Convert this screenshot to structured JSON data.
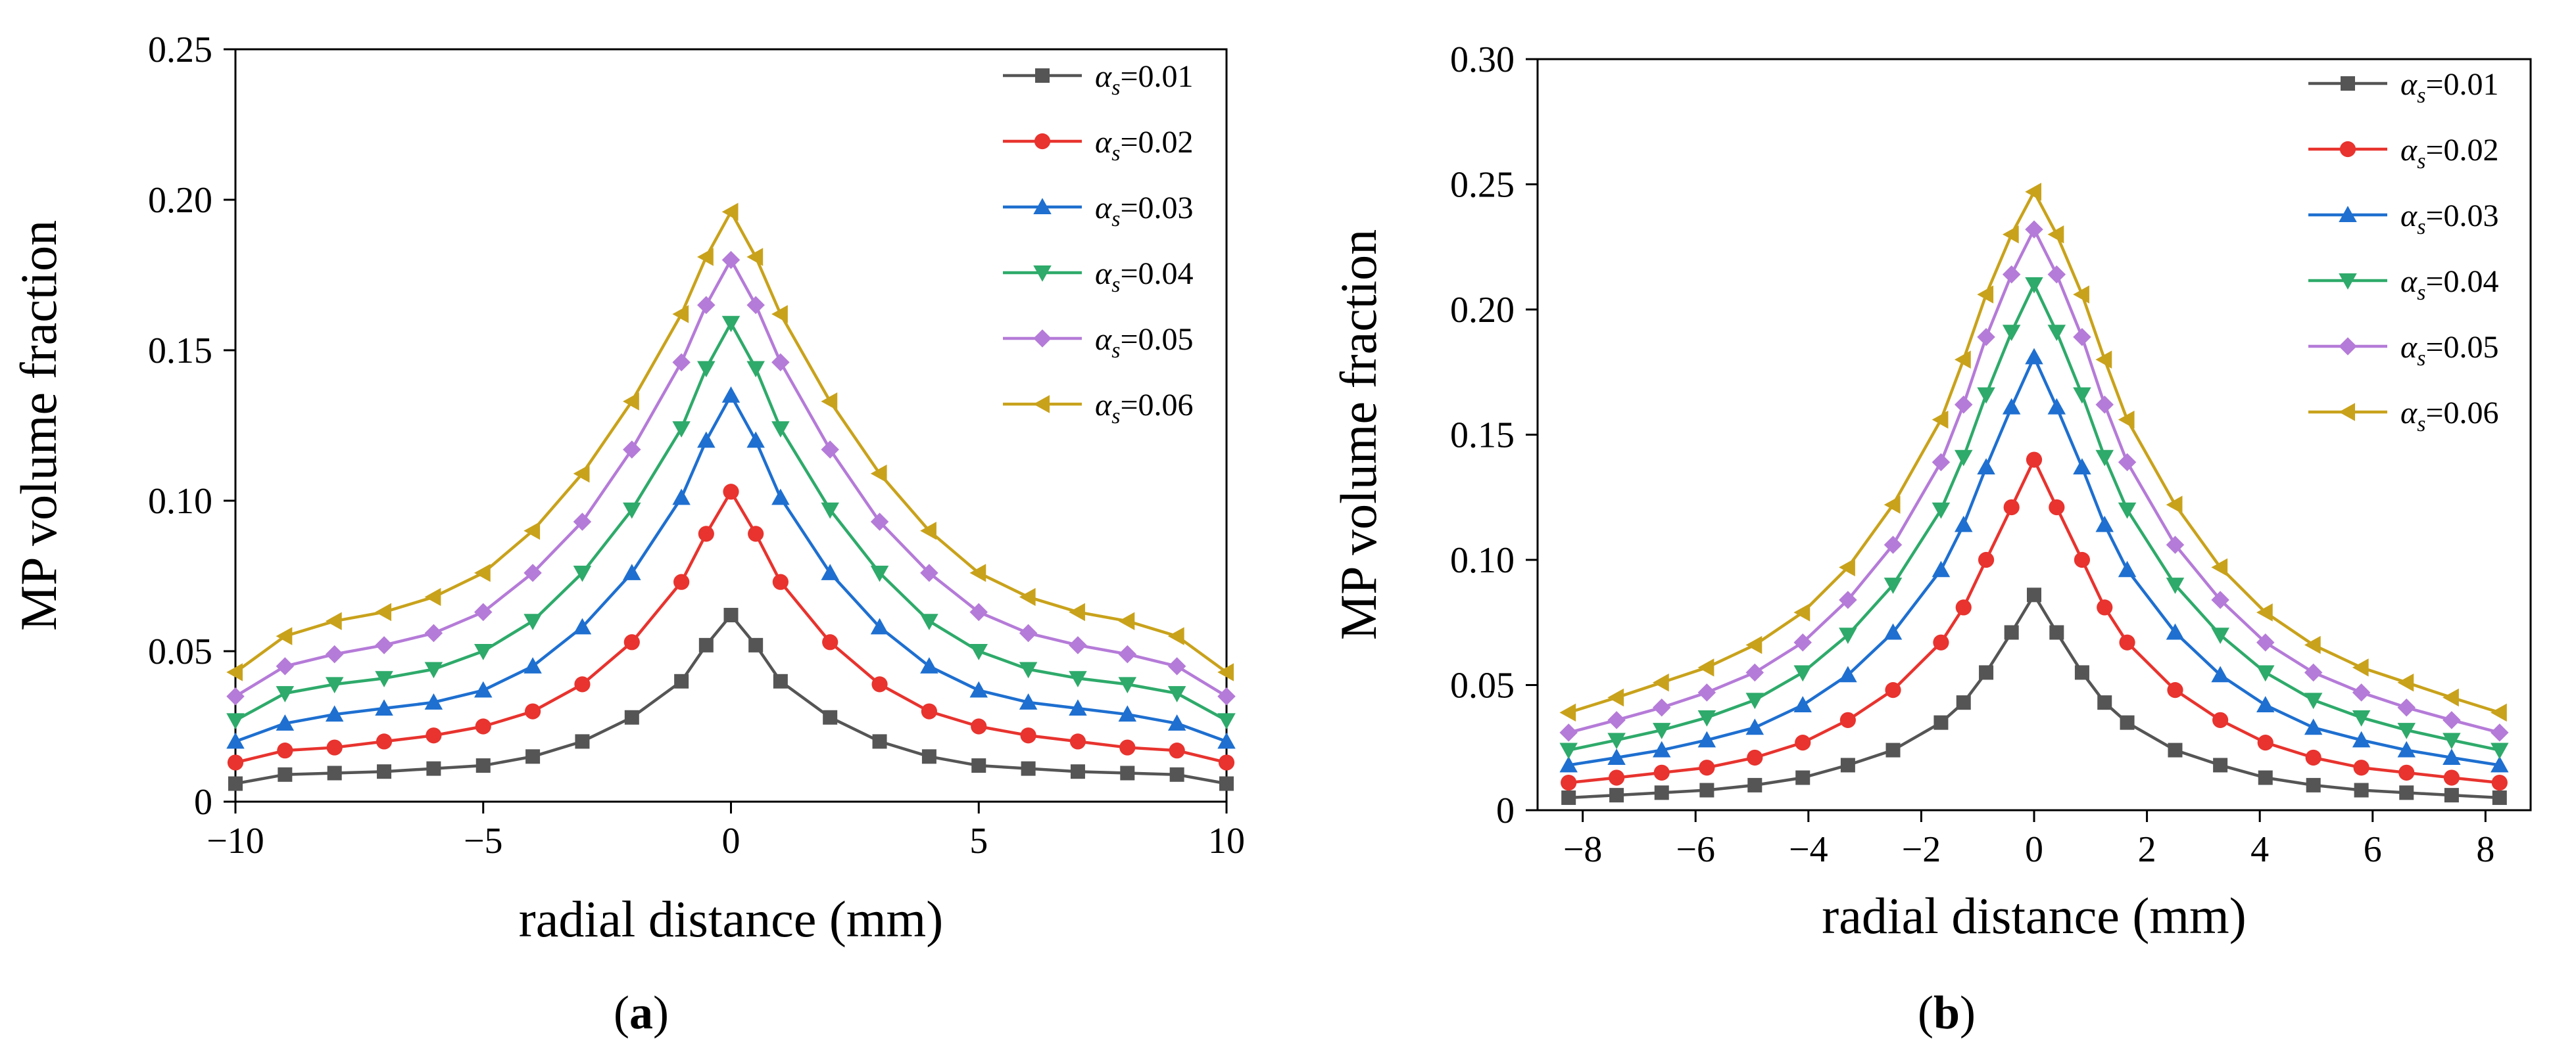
{
  "panel_labels": [
    "(a)",
    "(b)"
  ],
  "panel_letters": [
    "a",
    "b"
  ],
  "legend_symbol": "α",
  "legend_subscript": "s",
  "chart_data": [
    {
      "type": "line",
      "panel": "(a)",
      "xlabel": "radial distance (mm)",
      "ylabel": "MP volume fraction",
      "xlim": [
        -10,
        10
      ],
      "ylim": [
        0,
        0.25
      ],
      "xticks": [
        -10,
        -5,
        0,
        5,
        10
      ],
      "xtick_labels": [
        "−10",
        "−5",
        "0",
        "5",
        "10"
      ],
      "yticks": [
        0,
        0.05,
        0.1,
        0.15,
        0.2,
        0.25
      ],
      "ytick_labels": [
        "0",
        "0.05",
        "0.10",
        "0.15",
        "0.20",
        "0.25"
      ],
      "legend_position": "top-right",
      "x": [
        -10,
        -9,
        -8,
        -7,
        -6,
        -5,
        -4,
        -3,
        -2,
        -1,
        -0.5,
        0,
        0.5,
        1,
        2,
        3,
        4,
        5,
        6,
        7,
        8,
        9,
        10
      ],
      "series": [
        {
          "name": "αs=0.01",
          "value_label": "=0.01",
          "color": "#555555",
          "marker": "square",
          "values": [
            0.006,
            0.009,
            0.0095,
            0.01,
            0.011,
            0.012,
            0.015,
            0.02,
            0.028,
            0.04,
            0.052,
            0.062,
            0.052,
            0.04,
            0.028,
            0.02,
            0.015,
            0.012,
            0.011,
            0.01,
            0.0095,
            0.009,
            0.006
          ]
        },
        {
          "name": "αs=0.02",
          "value_label": "=0.02",
          "color": "#e8332e",
          "marker": "circle",
          "values": [
            0.013,
            0.017,
            0.018,
            0.02,
            0.022,
            0.025,
            0.03,
            0.039,
            0.053,
            0.073,
            0.089,
            0.103,
            0.089,
            0.073,
            0.053,
            0.039,
            0.03,
            0.025,
            0.022,
            0.02,
            0.018,
            0.017,
            0.013
          ]
        },
        {
          "name": "αs=0.03",
          "value_label": "=0.03",
          "color": "#1e6fd0",
          "marker": "triangle-up",
          "values": [
            0.02,
            0.026,
            0.029,
            0.031,
            0.033,
            0.037,
            0.045,
            0.058,
            0.076,
            0.101,
            0.12,
            0.135,
            0.12,
            0.101,
            0.076,
            0.058,
            0.045,
            0.037,
            0.033,
            0.031,
            0.029,
            0.026,
            0.02
          ]
        },
        {
          "name": "αs=0.04",
          "value_label": "=0.04",
          "color": "#2eaa6a",
          "marker": "triangle-down",
          "values": [
            0.027,
            0.036,
            0.039,
            0.041,
            0.044,
            0.05,
            0.06,
            0.076,
            0.097,
            0.124,
            0.144,
            0.159,
            0.144,
            0.124,
            0.097,
            0.076,
            0.06,
            0.05,
            0.044,
            0.041,
            0.039,
            0.036,
            0.027
          ]
        },
        {
          "name": "αs=0.05",
          "value_label": "=0.05",
          "color": "#b57bd8",
          "marker": "diamond",
          "values": [
            0.035,
            0.045,
            0.049,
            0.052,
            0.056,
            0.063,
            0.076,
            0.093,
            0.117,
            0.146,
            0.165,
            0.18,
            0.165,
            0.146,
            0.117,
            0.093,
            0.076,
            0.063,
            0.056,
            0.052,
            0.049,
            0.045,
            0.035
          ]
        },
        {
          "name": "αs=0.06",
          "value_label": "=0.06",
          "color": "#c9a21b",
          "marker": "triangle-left",
          "values": [
            0.043,
            0.055,
            0.06,
            0.063,
            0.068,
            0.076,
            0.09,
            0.109,
            0.133,
            0.162,
            0.181,
            0.196,
            0.181,
            0.162,
            0.133,
            0.109,
            0.09,
            0.076,
            0.068,
            0.063,
            0.06,
            0.055,
            0.043
          ]
        }
      ]
    },
    {
      "type": "line",
      "panel": "(b)",
      "xlabel": "radial distance (mm)",
      "ylabel": "MP volume fraction",
      "xlim": [
        -8.8,
        8.8
      ],
      "ylim": [
        0,
        0.3
      ],
      "xticks": [
        -8,
        -6,
        -4,
        -2,
        0,
        2,
        4,
        6,
        8
      ],
      "xtick_labels": [
        "−8",
        "−6",
        "−4",
        "−2",
        "0",
        "2",
        "4",
        "6",
        "8"
      ],
      "yticks": [
        0,
        0.05,
        0.1,
        0.15,
        0.2,
        0.25,
        0.3
      ],
      "ytick_labels": [
        "0",
        "0.05",
        "0.10",
        "0.15",
        "0.20",
        "0.25",
        "0.30"
      ],
      "legend_position": "top-right",
      "x": [
        -8.25,
        -7.4,
        -6.6,
        -5.8,
        -4.95,
        -4.1,
        -3.3,
        -2.5,
        -1.65,
        -1.25,
        -0.85,
        -0.4,
        0,
        0.4,
        0.85,
        1.25,
        1.65,
        2.5,
        3.3,
        4.1,
        4.95,
        5.8,
        6.6,
        7.4,
        8.25
      ],
      "series": [
        {
          "name": "αs=0.01",
          "value_label": "=0.01",
          "color": "#555555",
          "marker": "square",
          "values": [
            0.005,
            0.006,
            0.007,
            0.008,
            0.01,
            0.013,
            0.018,
            0.024,
            0.035,
            0.043,
            0.055,
            0.071,
            0.086,
            0.071,
            0.055,
            0.043,
            0.035,
            0.024,
            0.018,
            0.013,
            0.01,
            0.008,
            0.007,
            0.006,
            0.005
          ]
        },
        {
          "name": "αs=0.02",
          "value_label": "=0.02",
          "color": "#e8332e",
          "marker": "circle",
          "values": [
            0.011,
            0.013,
            0.015,
            0.017,
            0.021,
            0.027,
            0.036,
            0.048,
            0.067,
            0.081,
            0.1,
            0.121,
            0.14,
            0.121,
            0.1,
            0.081,
            0.067,
            0.048,
            0.036,
            0.027,
            0.021,
            0.017,
            0.015,
            0.013,
            0.011
          ]
        },
        {
          "name": "αs=0.03",
          "value_label": "=0.03",
          "color": "#1e6fd0",
          "marker": "triangle-up",
          "values": [
            0.018,
            0.021,
            0.024,
            0.028,
            0.033,
            0.042,
            0.054,
            0.071,
            0.096,
            0.114,
            0.137,
            0.161,
            0.181,
            0.161,
            0.137,
            0.114,
            0.096,
            0.071,
            0.054,
            0.042,
            0.033,
            0.028,
            0.024,
            0.021,
            0.018
          ]
        },
        {
          "name": "αs=0.04",
          "value_label": "=0.04",
          "color": "#2eaa6a",
          "marker": "triangle-down",
          "values": [
            0.024,
            0.028,
            0.032,
            0.037,
            0.044,
            0.055,
            0.07,
            0.09,
            0.12,
            0.141,
            0.166,
            0.191,
            0.21,
            0.191,
            0.166,
            0.141,
            0.12,
            0.09,
            0.07,
            0.055,
            0.044,
            0.037,
            0.032,
            0.028,
            0.024
          ]
        },
        {
          "name": "αs=0.05",
          "value_label": "=0.05",
          "color": "#b57bd8",
          "marker": "diamond",
          "values": [
            0.031,
            0.036,
            0.041,
            0.047,
            0.055,
            0.067,
            0.084,
            0.106,
            0.139,
            0.162,
            0.189,
            0.214,
            0.232,
            0.214,
            0.189,
            0.162,
            0.139,
            0.106,
            0.084,
            0.067,
            0.055,
            0.047,
            0.041,
            0.036,
            0.031
          ]
        },
        {
          "name": "αs=0.06",
          "value_label": "=0.06",
          "color": "#c9a21b",
          "marker": "triangle-left",
          "values": [
            0.039,
            0.045,
            0.051,
            0.057,
            0.066,
            0.079,
            0.097,
            0.122,
            0.156,
            0.18,
            0.206,
            0.23,
            0.247,
            0.23,
            0.206,
            0.18,
            0.156,
            0.122,
            0.097,
            0.079,
            0.066,
            0.057,
            0.051,
            0.045,
            0.039
          ]
        }
      ]
    }
  ]
}
